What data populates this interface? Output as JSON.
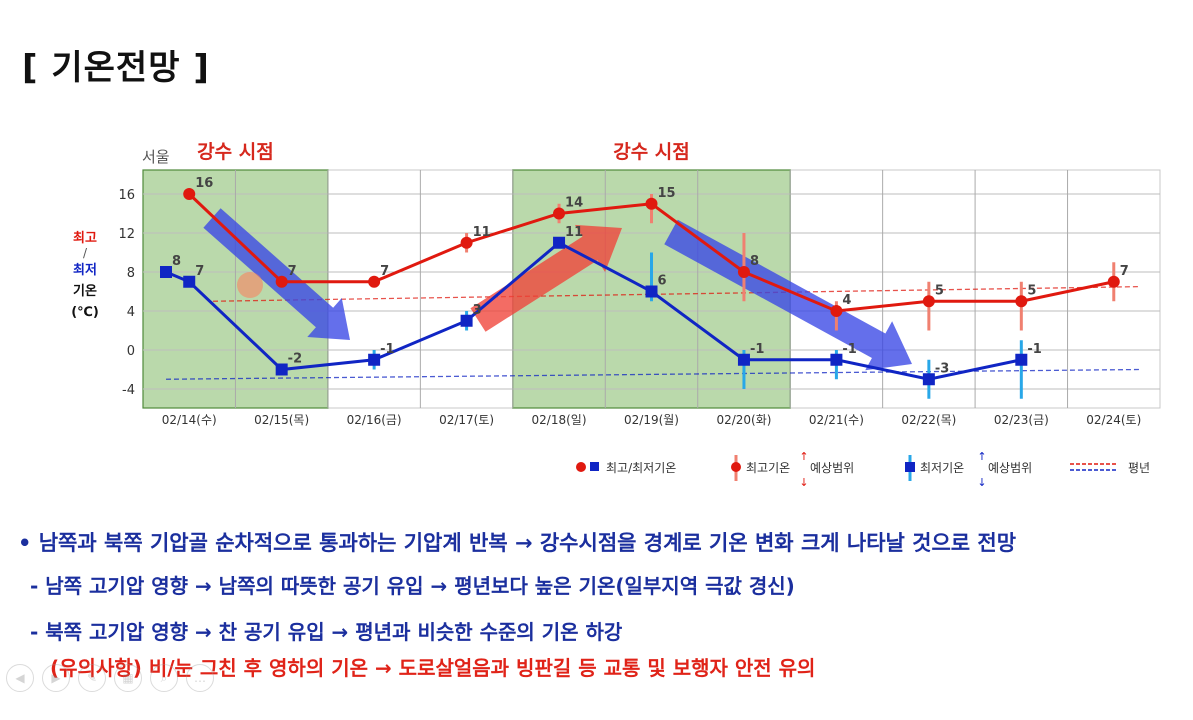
{
  "title": "[ 기온전망 ]",
  "chart_data": {
    "type": "line",
    "region": "서울",
    "precip_label": "강수 시점",
    "precip_periods": [
      [
        0,
        1
      ],
      [
        4,
        6
      ]
    ],
    "ylabel": {
      "max": "최고",
      "sep": "/",
      "min": "최저",
      "word": "기온",
      "unit": "(℃)"
    },
    "categories": [
      "02/14(수)",
      "02/15(목)",
      "02/16(금)",
      "02/17(토)",
      "02/18(일)",
      "02/19(월)",
      "02/20(화)",
      "02/21(수)",
      "02/22(목)",
      "02/23(금)",
      "02/24(토)"
    ],
    "yticks": [
      16,
      12,
      8,
      4,
      0,
      -4
    ],
    "ylim": [
      -6,
      18
    ],
    "series": [
      {
        "name": "최고기온",
        "color": "#e0190f",
        "x": [
          0,
          1,
          2,
          3,
          4,
          5,
          6,
          7,
          8,
          9,
          10
        ],
        "values": [
          16,
          7,
          7,
          11,
          14,
          15,
          8,
          4,
          5,
          5,
          7
        ],
        "labels": [
          "16",
          "7",
          "7",
          "11",
          "14",
          "15",
          "8",
          "4",
          "5",
          "5",
          "7"
        ],
        "range_low": [
          null,
          null,
          null,
          10,
          13,
          13,
          5,
          2,
          2,
          2,
          5
        ],
        "range_high": [
          null,
          null,
          null,
          12,
          15,
          16,
          12,
          5,
          7,
          7,
          9
        ]
      },
      {
        "name": "최저기온",
        "color": "#1025c4",
        "x": [
          -1,
          0,
          1,
          2,
          3,
          4,
          5,
          6,
          7,
          8,
          9
        ],
        "values": [
          8,
          7,
          -2,
          -1,
          3,
          11,
          6,
          -1,
          -1,
          -3,
          -1
        ],
        "labels": [
          "8",
          "7",
          "-2",
          "-1",
          "3",
          "11",
          "6",
          "-1",
          "-1",
          "-3",
          "-1"
        ],
        "range_low": [
          null,
          null,
          null,
          -2,
          2,
          null,
          5,
          -4,
          -3,
          -5,
          -5
        ],
        "range_high": [
          null,
          null,
          null,
          0,
          4,
          null,
          10,
          0,
          0,
          -1,
          1
        ]
      }
    ],
    "normals": {
      "max": [
        5,
        6.5
      ],
      "min": [
        -3,
        -2
      ]
    },
    "legend": {
      "item1": "최고/최저기온",
      "item2": "최고기온",
      "item3": "최저기온",
      "range": "예상범위",
      "normal": "평년"
    }
  },
  "bullets": [
    "• 남쪽과 북쪽 기압골 순차적으로 통과하는 기압계 반복 → 강수시점을 경계로 기온 변화 크게 나타날 것으로 전망",
    "- 남쪽 고기압 영향 → 남쪽의 따뜻한 공기 유입 → 평년보다 높은 기온(일부지역 극값 경신)",
    "- 북쪽 고기압 영향 → 찬 공기 유입 → 평년과 비슷한 수준의 기온 하강",
    "(유의사항) 비/눈 그친 후 영하의 기온 → 도로살얼음과 빙판길 등 교통 및 보행자 안전 유의"
  ],
  "colors": {
    "max": "#e0190f",
    "min": "#1025c4",
    "precip_fill": "#8cbf73",
    "bullet_blue": "#1b2f9e",
    "bullet_red": "#e02318"
  }
}
